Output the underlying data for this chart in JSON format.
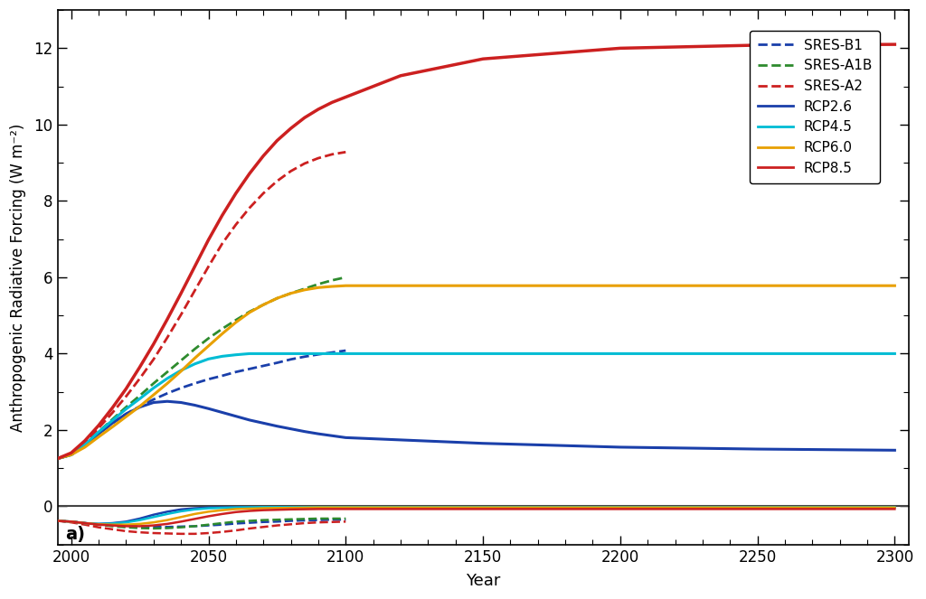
{
  "xlabel": "Year",
  "ylabel": "Anthropogenic Radiative Forcing (W m⁻²)",
  "annotation": "a)",
  "xlim": [
    1995,
    2305
  ],
  "ylim": [
    -1.0,
    13.0
  ],
  "yticks": [
    0,
    2,
    4,
    6,
    8,
    10,
    12
  ],
  "xticks": [
    2000,
    2050,
    2100,
    2150,
    2200,
    2250,
    2300
  ],
  "background_color": "#ffffff",
  "series": [
    {
      "name": "SRES-B1",
      "color": "#1a3faa",
      "linestyle": "dashed",
      "linewidth": 2.0,
      "points": [
        [
          1995,
          1.25
        ],
        [
          2000,
          1.35
        ],
        [
          2005,
          1.6
        ],
        [
          2010,
          1.9
        ],
        [
          2015,
          2.18
        ],
        [
          2020,
          2.42
        ],
        [
          2025,
          2.62
        ],
        [
          2030,
          2.8
        ],
        [
          2035,
          2.96
        ],
        [
          2040,
          3.1
        ],
        [
          2045,
          3.22
        ],
        [
          2050,
          3.33
        ],
        [
          2055,
          3.42
        ],
        [
          2060,
          3.52
        ],
        [
          2065,
          3.6
        ],
        [
          2070,
          3.68
        ],
        [
          2075,
          3.76
        ],
        [
          2080,
          3.85
        ],
        [
          2085,
          3.92
        ],
        [
          2090,
          3.98
        ],
        [
          2095,
          4.03
        ],
        [
          2100,
          4.08
        ]
      ]
    },
    {
      "name": "SRES-A1B",
      "color": "#2e8b2e",
      "linestyle": "dashed",
      "linewidth": 2.0,
      "points": [
        [
          1995,
          1.25
        ],
        [
          2000,
          1.35
        ],
        [
          2005,
          1.62
        ],
        [
          2010,
          1.95
        ],
        [
          2015,
          2.28
        ],
        [
          2020,
          2.6
        ],
        [
          2025,
          2.9
        ],
        [
          2030,
          3.22
        ],
        [
          2035,
          3.52
        ],
        [
          2040,
          3.82
        ],
        [
          2045,
          4.12
        ],
        [
          2050,
          4.4
        ],
        [
          2055,
          4.65
        ],
        [
          2060,
          4.88
        ],
        [
          2065,
          5.1
        ],
        [
          2070,
          5.28
        ],
        [
          2075,
          5.45
        ],
        [
          2080,
          5.58
        ],
        [
          2085,
          5.7
        ],
        [
          2090,
          5.82
        ],
        [
          2095,
          5.92
        ],
        [
          2100,
          6.0
        ]
      ]
    },
    {
      "name": "SRES-A2",
      "color": "#cc2020",
      "linestyle": "dashed",
      "linewidth": 2.0,
      "points": [
        [
          1995,
          1.25
        ],
        [
          2000,
          1.38
        ],
        [
          2005,
          1.68
        ],
        [
          2010,
          2.05
        ],
        [
          2015,
          2.45
        ],
        [
          2020,
          2.88
        ],
        [
          2025,
          3.35
        ],
        [
          2030,
          3.85
        ],
        [
          2035,
          4.42
        ],
        [
          2040,
          5.02
        ],
        [
          2045,
          5.65
        ],
        [
          2050,
          6.28
        ],
        [
          2055,
          6.88
        ],
        [
          2060,
          7.38
        ],
        [
          2065,
          7.82
        ],
        [
          2070,
          8.2
        ],
        [
          2075,
          8.52
        ],
        [
          2080,
          8.78
        ],
        [
          2085,
          8.98
        ],
        [
          2090,
          9.12
        ],
        [
          2095,
          9.22
        ],
        [
          2100,
          9.28
        ]
      ]
    },
    {
      "name": "RCP2.6",
      "color": "#1a3faa",
      "linestyle": "solid",
      "linewidth": 2.2,
      "points": [
        [
          1995,
          1.25
        ],
        [
          2000,
          1.35
        ],
        [
          2005,
          1.6
        ],
        [
          2010,
          1.9
        ],
        [
          2015,
          2.18
        ],
        [
          2020,
          2.42
        ],
        [
          2025,
          2.6
        ],
        [
          2030,
          2.72
        ],
        [
          2035,
          2.75
        ],
        [
          2040,
          2.72
        ],
        [
          2045,
          2.65
        ],
        [
          2050,
          2.56
        ],
        [
          2055,
          2.46
        ],
        [
          2060,
          2.36
        ],
        [
          2065,
          2.26
        ],
        [
          2070,
          2.18
        ],
        [
          2075,
          2.1
        ],
        [
          2080,
          2.03
        ],
        [
          2085,
          1.96
        ],
        [
          2090,
          1.9
        ],
        [
          2095,
          1.85
        ],
        [
          2100,
          1.8
        ],
        [
          2150,
          1.65
        ],
        [
          2200,
          1.55
        ],
        [
          2250,
          1.5
        ],
        [
          2300,
          1.47
        ]
      ]
    },
    {
      "name": "RCP4.5",
      "color": "#00bcd4",
      "linestyle": "solid",
      "linewidth": 2.2,
      "points": [
        [
          1995,
          1.25
        ],
        [
          2000,
          1.35
        ],
        [
          2005,
          1.62
        ],
        [
          2010,
          1.95
        ],
        [
          2015,
          2.25
        ],
        [
          2020,
          2.55
        ],
        [
          2025,
          2.82
        ],
        [
          2030,
          3.1
        ],
        [
          2035,
          3.35
        ],
        [
          2040,
          3.56
        ],
        [
          2045,
          3.73
        ],
        [
          2050,
          3.86
        ],
        [
          2055,
          3.93
        ],
        [
          2060,
          3.97
        ],
        [
          2065,
          4.0
        ],
        [
          2070,
          4.0
        ],
        [
          2075,
          4.0
        ],
        [
          2080,
          4.0
        ],
        [
          2085,
          4.0
        ],
        [
          2090,
          4.0
        ],
        [
          2095,
          4.0
        ],
        [
          2100,
          4.0
        ],
        [
          2150,
          4.0
        ],
        [
          2200,
          4.0
        ],
        [
          2250,
          4.0
        ],
        [
          2300,
          4.0
        ]
      ]
    },
    {
      "name": "RCP6.0",
      "color": "#e8a000",
      "linestyle": "solid",
      "linewidth": 2.2,
      "points": [
        [
          1995,
          1.25
        ],
        [
          2000,
          1.35
        ],
        [
          2005,
          1.55
        ],
        [
          2010,
          1.82
        ],
        [
          2015,
          2.08
        ],
        [
          2020,
          2.35
        ],
        [
          2025,
          2.62
        ],
        [
          2030,
          2.92
        ],
        [
          2035,
          3.22
        ],
        [
          2040,
          3.54
        ],
        [
          2045,
          3.88
        ],
        [
          2050,
          4.2
        ],
        [
          2055,
          4.52
        ],
        [
          2060,
          4.82
        ],
        [
          2065,
          5.08
        ],
        [
          2070,
          5.28
        ],
        [
          2075,
          5.45
        ],
        [
          2080,
          5.58
        ],
        [
          2085,
          5.67
        ],
        [
          2090,
          5.73
        ],
        [
          2095,
          5.76
        ],
        [
          2100,
          5.78
        ],
        [
          2150,
          5.78
        ],
        [
          2200,
          5.78
        ],
        [
          2250,
          5.78
        ],
        [
          2300,
          5.78
        ]
      ]
    },
    {
      "name": "RCP8.5",
      "color": "#cc2020",
      "linestyle": "solid",
      "linewidth": 2.5,
      "points": [
        [
          1995,
          1.25
        ],
        [
          2000,
          1.4
        ],
        [
          2005,
          1.72
        ],
        [
          2010,
          2.12
        ],
        [
          2015,
          2.58
        ],
        [
          2020,
          3.08
        ],
        [
          2025,
          3.65
        ],
        [
          2030,
          4.25
        ],
        [
          2035,
          4.9
        ],
        [
          2040,
          5.58
        ],
        [
          2045,
          6.28
        ],
        [
          2050,
          6.98
        ],
        [
          2055,
          7.62
        ],
        [
          2060,
          8.2
        ],
        [
          2065,
          8.72
        ],
        [
          2070,
          9.18
        ],
        [
          2075,
          9.58
        ],
        [
          2080,
          9.9
        ],
        [
          2085,
          10.18
        ],
        [
          2090,
          10.4
        ],
        [
          2095,
          10.58
        ],
        [
          2100,
          10.72
        ],
        [
          2120,
          11.28
        ],
        [
          2150,
          11.72
        ],
        [
          2200,
          12.0
        ],
        [
          2250,
          12.08
        ],
        [
          2300,
          12.1
        ]
      ]
    },
    {
      "name": "zero_line",
      "color": "#444444",
      "linestyle": "solid",
      "linewidth": 1.5,
      "points": [
        [
          1995,
          0.0
        ],
        [
          2305,
          0.0
        ]
      ]
    },
    {
      "name": "aerosol_sres_b1",
      "color": "#1a3faa",
      "linestyle": "dashed",
      "linewidth": 1.8,
      "points": [
        [
          1995,
          -0.38
        ],
        [
          2000,
          -0.4
        ],
        [
          2005,
          -0.44
        ],
        [
          2010,
          -0.48
        ],
        [
          2015,
          -0.5
        ],
        [
          2020,
          -0.52
        ],
        [
          2025,
          -0.53
        ],
        [
          2030,
          -0.54
        ],
        [
          2035,
          -0.54
        ],
        [
          2040,
          -0.53
        ],
        [
          2045,
          -0.52
        ],
        [
          2050,
          -0.5
        ],
        [
          2055,
          -0.48
        ],
        [
          2060,
          -0.45
        ],
        [
          2065,
          -0.43
        ],
        [
          2070,
          -0.41
        ],
        [
          2075,
          -0.4
        ],
        [
          2080,
          -0.38
        ],
        [
          2085,
          -0.37
        ],
        [
          2090,
          -0.36
        ],
        [
          2095,
          -0.35
        ],
        [
          2100,
          -0.35
        ]
      ]
    },
    {
      "name": "aerosol_sres_a1b",
      "color": "#2e8b2e",
      "linestyle": "dashed",
      "linewidth": 1.8,
      "points": [
        [
          1995,
          -0.38
        ],
        [
          2000,
          -0.4
        ],
        [
          2005,
          -0.44
        ],
        [
          2010,
          -0.48
        ],
        [
          2015,
          -0.52
        ],
        [
          2020,
          -0.55
        ],
        [
          2025,
          -0.57
        ],
        [
          2030,
          -0.58
        ],
        [
          2035,
          -0.57
        ],
        [
          2040,
          -0.55
        ],
        [
          2045,
          -0.52
        ],
        [
          2050,
          -0.48
        ],
        [
          2055,
          -0.44
        ],
        [
          2060,
          -0.4
        ],
        [
          2065,
          -0.38
        ],
        [
          2070,
          -0.36
        ],
        [
          2075,
          -0.35
        ],
        [
          2080,
          -0.34
        ],
        [
          2085,
          -0.33
        ],
        [
          2090,
          -0.32
        ],
        [
          2095,
          -0.32
        ],
        [
          2100,
          -0.32
        ]
      ]
    },
    {
      "name": "aerosol_sres_a2",
      "color": "#cc2020",
      "linestyle": "dashed",
      "linewidth": 1.8,
      "points": [
        [
          1995,
          -0.38
        ],
        [
          2000,
          -0.42
        ],
        [
          2005,
          -0.48
        ],
        [
          2010,
          -0.55
        ],
        [
          2015,
          -0.6
        ],
        [
          2020,
          -0.65
        ],
        [
          2025,
          -0.68
        ],
        [
          2030,
          -0.7
        ],
        [
          2035,
          -0.71
        ],
        [
          2040,
          -0.72
        ],
        [
          2045,
          -0.72
        ],
        [
          2050,
          -0.7
        ],
        [
          2055,
          -0.67
        ],
        [
          2060,
          -0.63
        ],
        [
          2065,
          -0.58
        ],
        [
          2070,
          -0.54
        ],
        [
          2075,
          -0.5
        ],
        [
          2080,
          -0.47
        ],
        [
          2085,
          -0.44
        ],
        [
          2090,
          -0.42
        ],
        [
          2095,
          -0.41
        ],
        [
          2100,
          -0.4
        ]
      ]
    },
    {
      "name": "aerosol_rcp26",
      "color": "#1a3faa",
      "linestyle": "solid",
      "linewidth": 1.8,
      "points": [
        [
          1995,
          -0.38
        ],
        [
          2000,
          -0.4
        ],
        [
          2005,
          -0.44
        ],
        [
          2010,
          -0.46
        ],
        [
          2015,
          -0.44
        ],
        [
          2020,
          -0.4
        ],
        [
          2025,
          -0.32
        ],
        [
          2030,
          -0.22
        ],
        [
          2035,
          -0.14
        ],
        [
          2040,
          -0.08
        ],
        [
          2045,
          -0.05
        ],
        [
          2050,
          -0.03
        ],
        [
          2060,
          -0.02
        ],
        [
          2070,
          -0.02
        ],
        [
          2100,
          -0.02
        ],
        [
          2150,
          -0.02
        ],
        [
          2200,
          -0.02
        ],
        [
          2250,
          -0.02
        ],
        [
          2300,
          -0.02
        ]
      ]
    },
    {
      "name": "aerosol_rcp45",
      "color": "#00bcd4",
      "linestyle": "solid",
      "linewidth": 1.8,
      "points": [
        [
          1995,
          -0.38
        ],
        [
          2000,
          -0.4
        ],
        [
          2005,
          -0.44
        ],
        [
          2010,
          -0.46
        ],
        [
          2015,
          -0.45
        ],
        [
          2020,
          -0.42
        ],
        [
          2025,
          -0.36
        ],
        [
          2030,
          -0.28
        ],
        [
          2035,
          -0.2
        ],
        [
          2040,
          -0.13
        ],
        [
          2045,
          -0.08
        ],
        [
          2050,
          -0.05
        ],
        [
          2060,
          -0.03
        ],
        [
          2070,
          -0.02
        ],
        [
          2100,
          -0.02
        ],
        [
          2150,
          -0.02
        ],
        [
          2200,
          -0.02
        ],
        [
          2250,
          -0.02
        ],
        [
          2300,
          -0.02
        ]
      ]
    },
    {
      "name": "aerosol_rcp60",
      "color": "#e8a000",
      "linestyle": "solid",
      "linewidth": 1.8,
      "points": [
        [
          1995,
          -0.38
        ],
        [
          2000,
          -0.4
        ],
        [
          2005,
          -0.44
        ],
        [
          2010,
          -0.47
        ],
        [
          2015,
          -0.48
        ],
        [
          2020,
          -0.48
        ],
        [
          2025,
          -0.46
        ],
        [
          2030,
          -0.42
        ],
        [
          2035,
          -0.36
        ],
        [
          2040,
          -0.28
        ],
        [
          2045,
          -0.2
        ],
        [
          2050,
          -0.14
        ],
        [
          2055,
          -0.1
        ],
        [
          2060,
          -0.07
        ],
        [
          2070,
          -0.05
        ],
        [
          2080,
          -0.04
        ],
        [
          2090,
          -0.03
        ],
        [
          2100,
          -0.03
        ],
        [
          2150,
          -0.03
        ],
        [
          2200,
          -0.03
        ],
        [
          2250,
          -0.03
        ],
        [
          2300,
          -0.03
        ]
      ]
    },
    {
      "name": "aerosol_rcp85",
      "color": "#cc2020",
      "linestyle": "solid",
      "linewidth": 1.8,
      "points": [
        [
          1995,
          -0.38
        ],
        [
          2000,
          -0.4
        ],
        [
          2005,
          -0.44
        ],
        [
          2010,
          -0.48
        ],
        [
          2015,
          -0.5
        ],
        [
          2020,
          -0.52
        ],
        [
          2025,
          -0.52
        ],
        [
          2030,
          -0.5
        ],
        [
          2035,
          -0.46
        ],
        [
          2040,
          -0.4
        ],
        [
          2045,
          -0.33
        ],
        [
          2050,
          -0.26
        ],
        [
          2055,
          -0.2
        ],
        [
          2060,
          -0.15
        ],
        [
          2065,
          -0.12
        ],
        [
          2070,
          -0.1
        ],
        [
          2080,
          -0.08
        ],
        [
          2090,
          -0.07
        ],
        [
          2100,
          -0.07
        ],
        [
          2150,
          -0.07
        ],
        [
          2200,
          -0.07
        ],
        [
          2250,
          -0.07
        ],
        [
          2300,
          -0.07
        ]
      ]
    }
  ],
  "legend_entries": [
    "SRES-B1",
    "SRES-A1B",
    "SRES-A2",
    "RCP2.6",
    "RCP4.5",
    "RCP6.0",
    "RCP8.5"
  ],
  "legend_colors": [
    "#1a3faa",
    "#2e8b2e",
    "#cc2020",
    "#1a3faa",
    "#00bcd4",
    "#e8a000",
    "#cc2020"
  ],
  "legend_linestyles": [
    "dashed",
    "dashed",
    "dashed",
    "solid",
    "solid",
    "solid",
    "solid"
  ]
}
